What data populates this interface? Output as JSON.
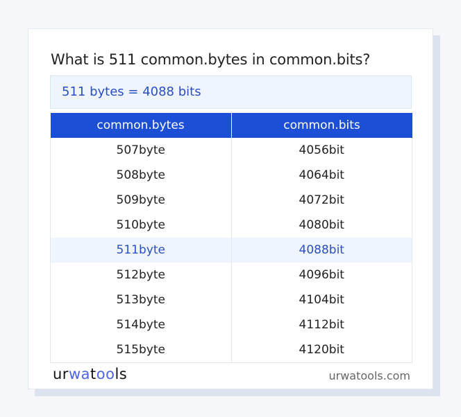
{
  "title": "What is 511 common.bytes in common.bits?",
  "summary": "511 bytes = 4088 bits",
  "table": {
    "headers": [
      "common.bytes",
      "common.bits"
    ],
    "rows": [
      [
        "507byte",
        "4056bit"
      ],
      [
        "508byte",
        "4064bit"
      ],
      [
        "509byte",
        "4072bit"
      ],
      [
        "510byte",
        "4080bit"
      ],
      [
        "511byte",
        "4088bit"
      ],
      [
        "512byte",
        "4096bit"
      ],
      [
        "513byte",
        "4104bit"
      ],
      [
        "514byte",
        "4112bit"
      ],
      [
        "515byte",
        "4120bit"
      ]
    ],
    "highlighted_row": 4
  },
  "footer": {
    "logo": "urwatools",
    "url": "urwatools.com"
  },
  "colors": {
    "accent": "#1c4fd6",
    "highlight_bg": "#eef5ff",
    "highlight_text": "#2b4fc2"
  }
}
